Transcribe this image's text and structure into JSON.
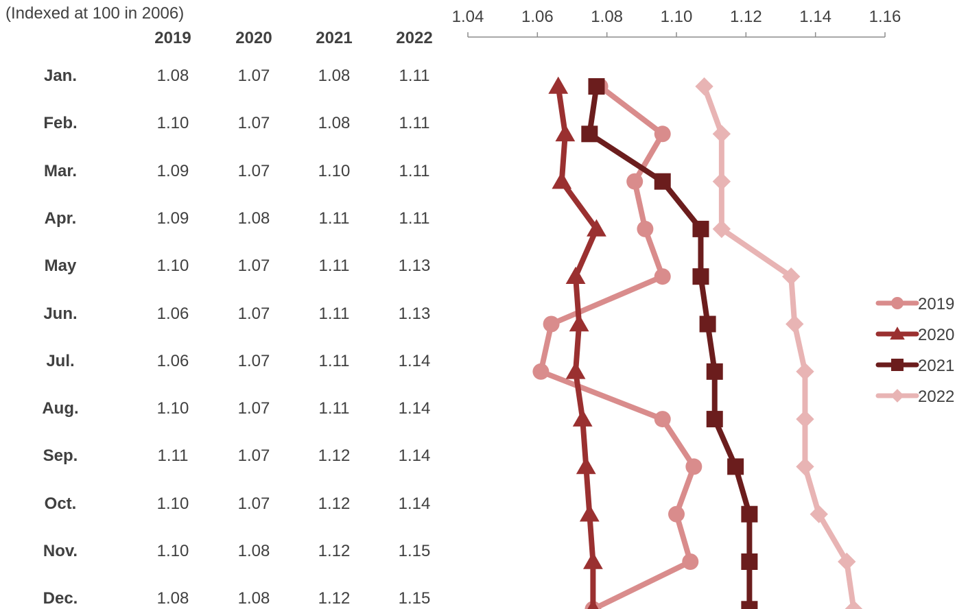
{
  "subtitle": "(Indexed at 100 in 2006)",
  "chart_data": {
    "type": "line",
    "orientation": "vertical-categories",
    "subtitle": "(Indexed at 100 in 2006)",
    "categories": [
      "Jan.",
      "Feb.",
      "Mar.",
      "Apr.",
      "May",
      "Jun.",
      "Jul.",
      "Aug.",
      "Sep.",
      "Oct.",
      "Nov.",
      "Dec."
    ],
    "axis": {
      "ticks": [
        "1.04",
        "1.06",
        "1.08",
        "1.10",
        "1.12",
        "1.14",
        "1.16"
      ],
      "range": [
        1.04,
        1.16
      ],
      "position": "top"
    },
    "grid": false,
    "legend_position": "right",
    "series": [
      {
        "name": "2019",
        "marker": "circle",
        "color": "#d98c8c",
        "table_values": [
          "1.08",
          "1.10",
          "1.09",
          "1.09",
          "1.10",
          "1.06",
          "1.06",
          "1.10",
          "1.11",
          "1.10",
          "1.10",
          "1.08"
        ],
        "values": [
          1.078,
          1.096,
          1.088,
          1.091,
          1.096,
          1.064,
          1.061,
          1.096,
          1.105,
          1.1,
          1.104,
          1.076
        ]
      },
      {
        "name": "2020",
        "marker": "triangle",
        "color": "#9a3030",
        "table_values": [
          "1.07",
          "1.07",
          "1.07",
          "1.08",
          "1.07",
          "1.07",
          "1.07",
          "1.07",
          "1.07",
          "1.07",
          "1.08",
          "1.08"
        ],
        "values": [
          1.066,
          1.068,
          1.067,
          1.077,
          1.071,
          1.072,
          1.071,
          1.073,
          1.074,
          1.075,
          1.076,
          1.076
        ]
      },
      {
        "name": "2021",
        "marker": "square",
        "color": "#6b1d1d",
        "table_values": [
          "1.08",
          "1.08",
          "1.10",
          "1.11",
          "1.11",
          "1.11",
          "1.11",
          "1.11",
          "1.12",
          "1.12",
          "1.12",
          "1.12"
        ],
        "values": [
          1.077,
          1.075,
          1.096,
          1.107,
          1.107,
          1.109,
          1.111,
          1.111,
          1.117,
          1.121,
          1.121,
          1.121
        ]
      },
      {
        "name": "2022",
        "marker": "diamond",
        "color": "#e8b4b4",
        "table_values": [
          "1.11",
          "1.11",
          "1.11",
          "1.11",
          "1.13",
          "1.13",
          "1.14",
          "1.14",
          "1.14",
          "1.14",
          "1.15",
          "1.15"
        ],
        "values": [
          1.108,
          1.113,
          1.113,
          1.113,
          1.133,
          1.134,
          1.137,
          1.137,
          1.137,
          1.141,
          1.149,
          1.151
        ]
      }
    ]
  }
}
